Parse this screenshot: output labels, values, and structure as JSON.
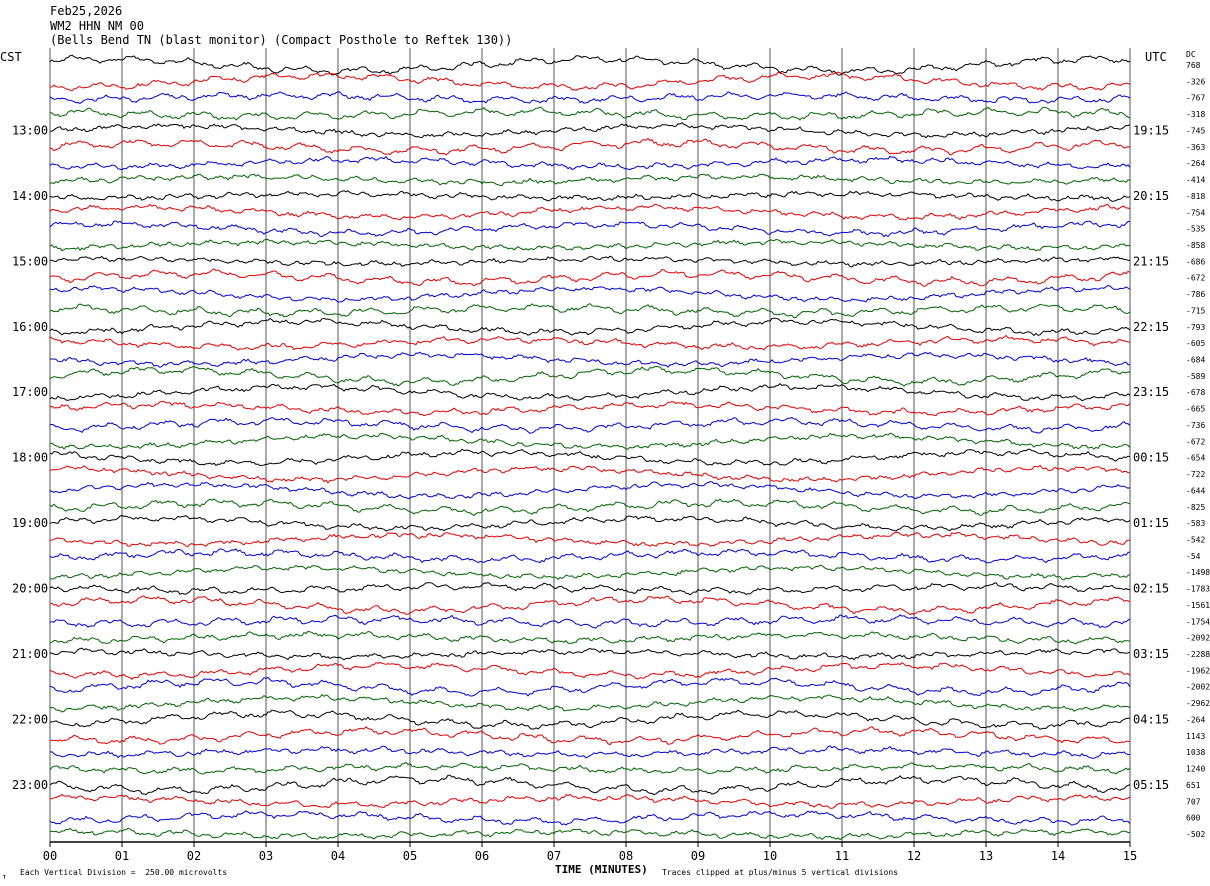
{
  "header": {
    "date": "Feb25,2026",
    "station": "WM2 HHN NM 00",
    "description": "(Bells Bend TN (blast monitor) (Compact Posthole to Reftek 130))"
  },
  "left_tz": "CST",
  "right_tz": "UTC",
  "dc_label": "DC",
  "footer": {
    "scale_note": "Each Vertical Division =  250.00 microvolts",
    "clip_note": "Traces clipped at plus/minus 5 vertical divisions",
    "corner_mark": "↑"
  },
  "chart_data": {
    "type": "line",
    "xlabel": "TIME (MINUTES)",
    "x_ticks": [
      "00",
      "01",
      "02",
      "03",
      "04",
      "05",
      "06",
      "07",
      "08",
      "09",
      "10",
      "11",
      "12",
      "13",
      "14",
      "15"
    ],
    "xlim": [
      0,
      15
    ],
    "left_hour_labels": [
      "13:00",
      "14:00",
      "15:00",
      "16:00",
      "17:00",
      "18:00",
      "19:00",
      "20:00",
      "21:00",
      "22:00",
      "23:00"
    ],
    "right_hour_labels": [
      "19:15",
      "20:15",
      "21:15",
      "22:15",
      "23:15",
      "00:15",
      "01:15",
      "02:15",
      "03:15",
      "04:15",
      "05:15"
    ],
    "trace_colors": [
      "#000000",
      "#e00000",
      "#0000d0",
      "#006400"
    ],
    "dc_offsets": [
      "768",
      "-326",
      "-767",
      "-318",
      "-745",
      "-363",
      "-264",
      "-414",
      "-818",
      "-754",
      "-535",
      "-858",
      "-686",
      "-672",
      "-786",
      "-715",
      "-793",
      "-605",
      "-684",
      "-589",
      "-678",
      "-665",
      "-736",
      "-672",
      "-654",
      "-722",
      "-644",
      "-825",
      "-583",
      "-542",
      "-54",
      "-1498",
      "-1783",
      "-1561",
      "-1754",
      "-2092",
      "-2288",
      "-1962",
      "-2002",
      "-2962",
      "-264",
      "1143",
      "1038",
      "1240",
      "651",
      "707",
      "600",
      "-502"
    ],
    "grid": "vertical lines each minute"
  }
}
